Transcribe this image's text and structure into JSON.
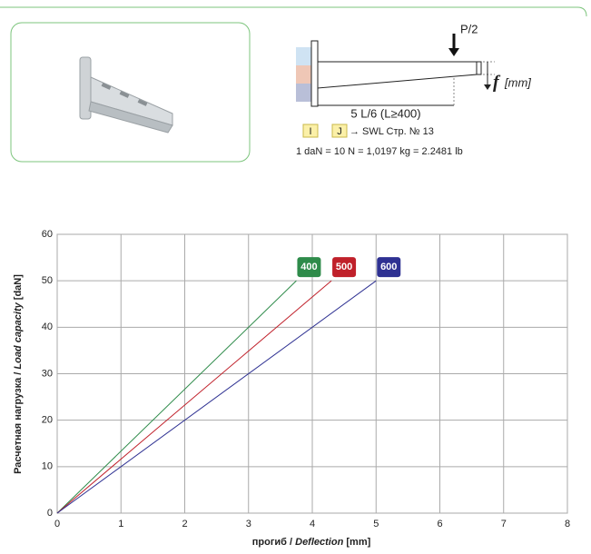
{
  "diagram": {
    "load": "P/2",
    "deflection_symbol": "f",
    "deflection_unit": "[mm]",
    "span": "5 L/6 (L≥400)",
    "box_i": "I",
    "box_j": "J",
    "reference": "→ SWL Стр. № 13",
    "conversion": "1 daN = 10 N = 1,0197 kg = 2.2481 lb"
  },
  "chart_data": {
    "type": "line",
    "xlabel": [
      "прогиб / ",
      "Deflection",
      " [mm]"
    ],
    "ylabel": [
      "Расчетная нагрузка / ",
      "Load capacity",
      " [daN]"
    ],
    "xlim": [
      0,
      8
    ],
    "xticks": [
      0,
      1,
      2,
      3,
      4,
      5,
      6,
      7,
      8
    ],
    "ylim": [
      0,
      60
    ],
    "yticks": [
      0,
      10,
      20,
      30,
      40,
      50,
      60
    ],
    "grid": true,
    "series": [
      {
        "name": "400",
        "color": "#2e8b4a",
        "x": [
          0,
          3.75
        ],
        "values": [
          0,
          50
        ]
      },
      {
        "name": "500",
        "color": "#c0202a",
        "x": [
          0,
          4.3
        ],
        "values": [
          0,
          50
        ]
      },
      {
        "name": "600",
        "color": "#2e3192",
        "x": [
          0,
          5
        ],
        "values": [
          0,
          50
        ]
      }
    ]
  }
}
